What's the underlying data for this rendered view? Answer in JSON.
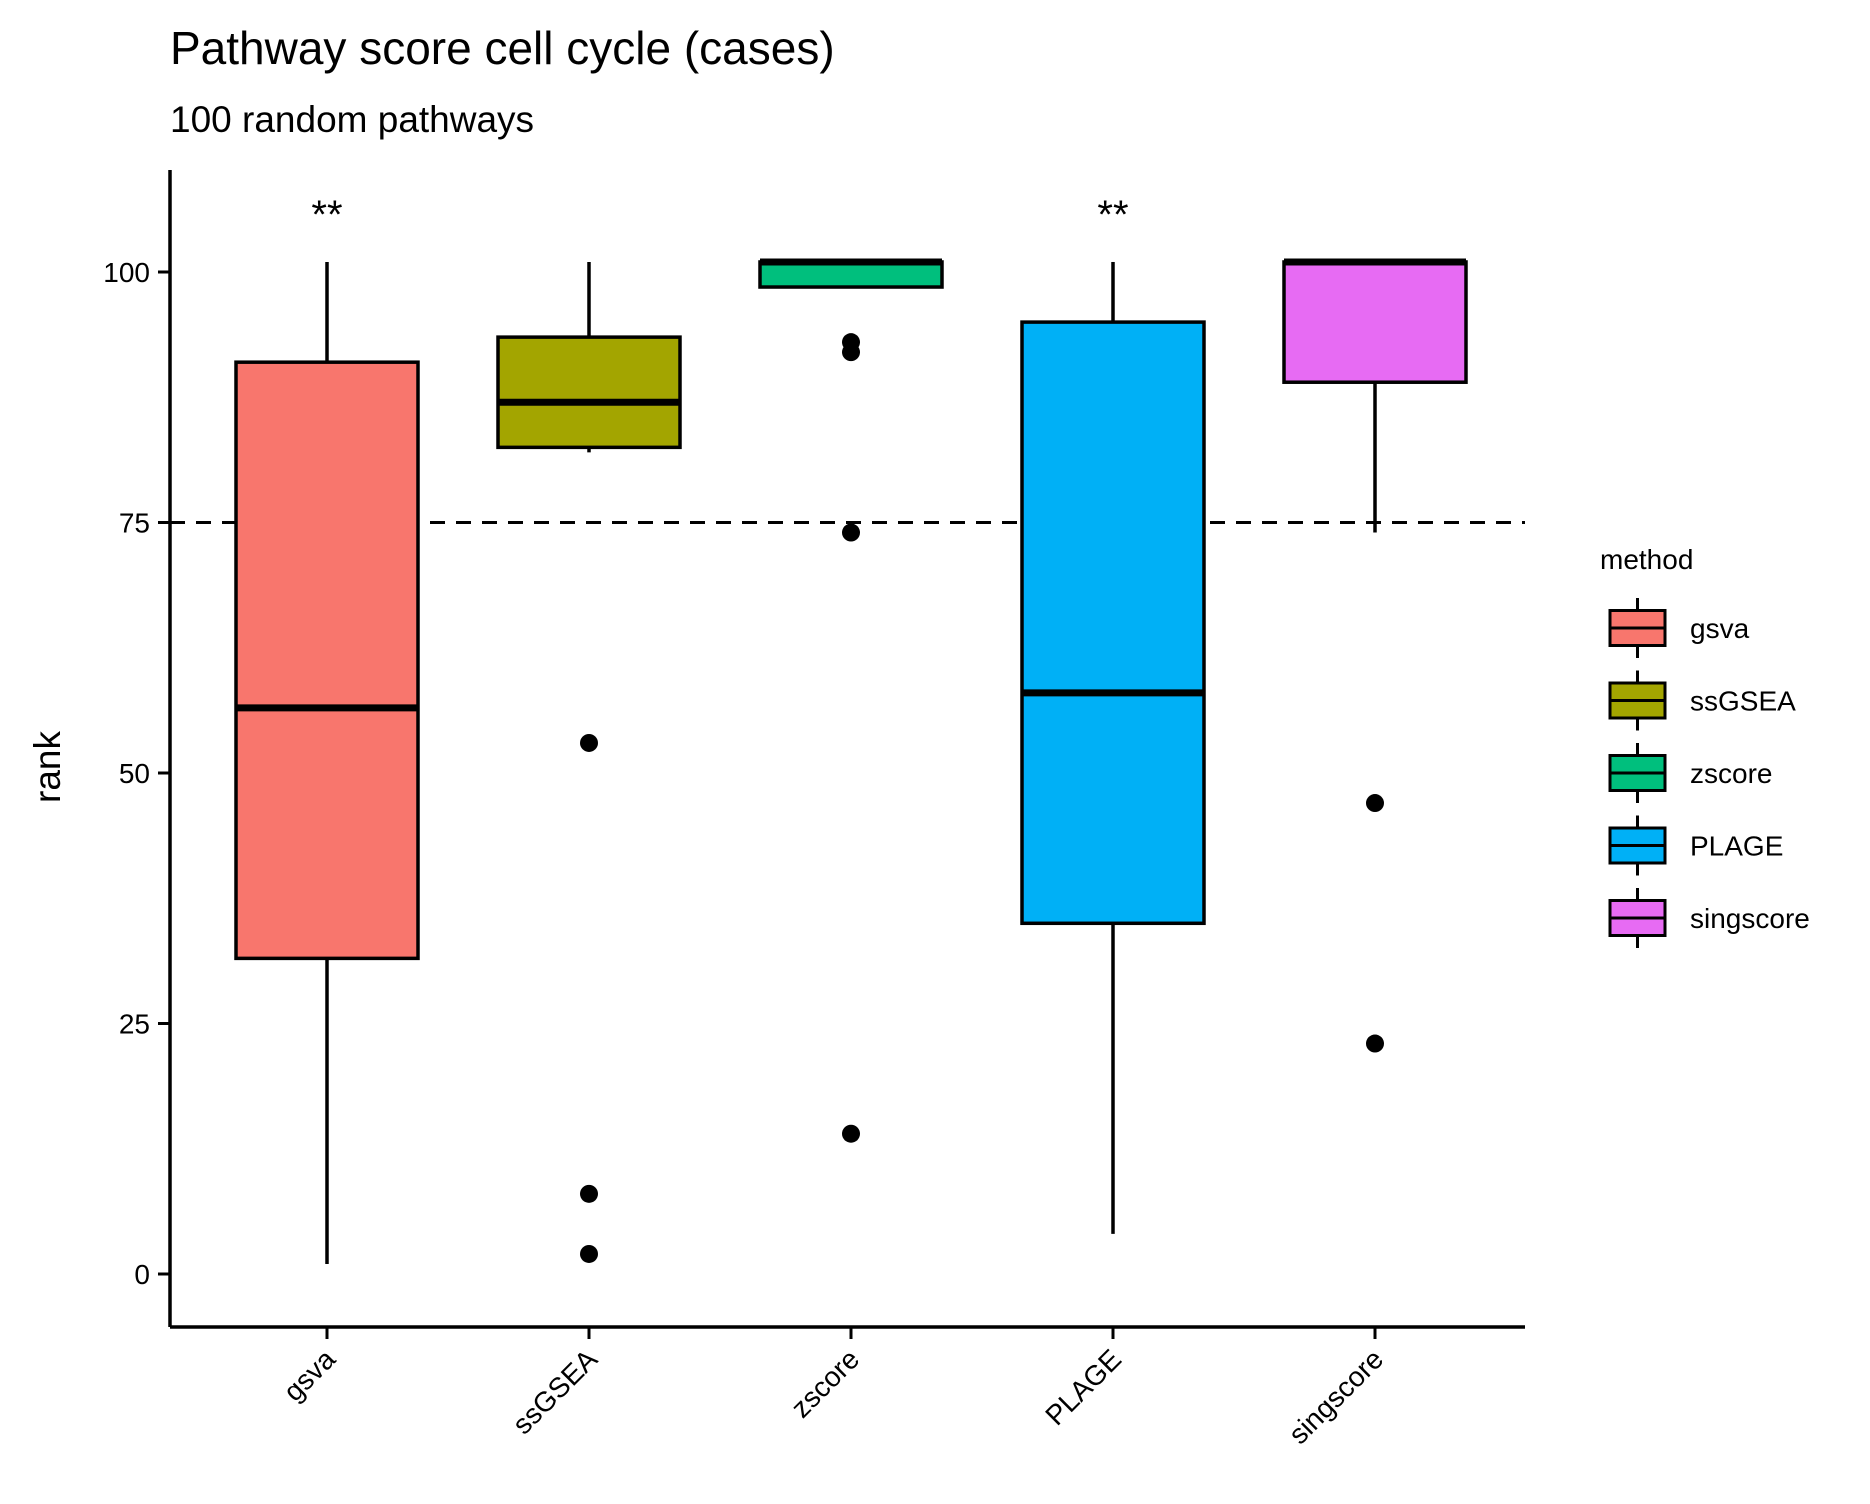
{
  "chart_data": {
    "type": "boxplot",
    "title": "Pathway score cell cycle (cases)",
    "subtitle": "100 random pathways",
    "xlabel": "",
    "ylabel": "rank",
    "ylim": [
      -5,
      110
    ],
    "yticks": [
      0,
      25,
      50,
      75,
      100
    ],
    "reference_line": {
      "y": 75,
      "style": "dashed"
    },
    "grid": false,
    "legend": {
      "title": "method",
      "position": "right"
    },
    "categories": [
      "gsva",
      "ssGSEA",
      "zscore",
      "PLAGE",
      "singscore"
    ],
    "series": [
      {
        "name": "gsva",
        "color": "#F8766D",
        "whisker_low": 1,
        "q1": 31.5,
        "median": 56.5,
        "q3": 91,
        "whisker_high": 101,
        "outliers": [],
        "annotation": "**"
      },
      {
        "name": "ssGSEA",
        "color": "#A3A500",
        "whisker_low": 82,
        "q1": 82.5,
        "median": 87,
        "q3": 93.5,
        "whisker_high": 101,
        "outliers": [
          53,
          8,
          2
        ],
        "annotation": ""
      },
      {
        "name": "zscore",
        "color": "#00BF7D",
        "whisker_low": 98.5,
        "q1": 98.5,
        "median": 101,
        "q3": 101,
        "whisker_high": 101,
        "outliers": [
          93,
          92,
          74,
          14
        ],
        "annotation": ""
      },
      {
        "name": "PLAGE",
        "color": "#00B0F6",
        "whisker_low": 4,
        "q1": 35,
        "median": 58,
        "q3": 95,
        "whisker_high": 101,
        "outliers": [],
        "annotation": "**"
      },
      {
        "name": "singscore",
        "color": "#E76BF3",
        "whisker_low": 74,
        "q1": 89,
        "median": 101,
        "q3": 101,
        "whisker_high": 101,
        "outliers": [
          47,
          23
        ],
        "annotation": ""
      }
    ]
  }
}
